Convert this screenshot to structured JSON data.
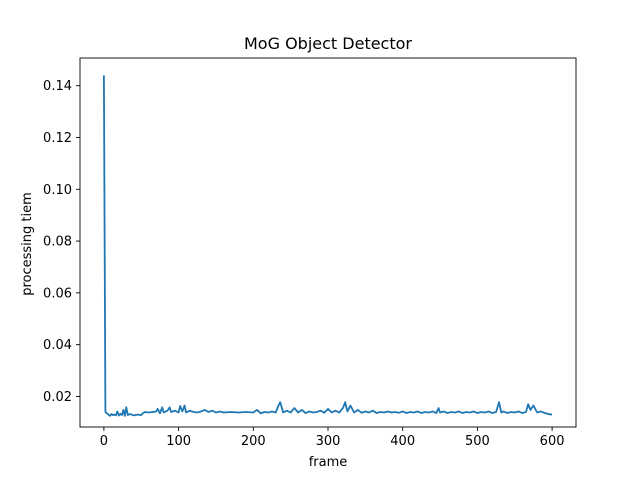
{
  "chart_data": {
    "type": "line",
    "title": "MoG Object Detector",
    "xlabel": "frame",
    "ylabel": "processing tiem",
    "xlim": [
      -32,
      632
    ],
    "ylim": [
      0.0082,
      0.1507
    ],
    "xticks": [
      0,
      100,
      200,
      300,
      400,
      500,
      600
    ],
    "yticks": [
      0.02,
      0.04,
      0.06,
      0.08,
      0.1,
      0.12,
      0.14
    ],
    "ytick_labels": [
      "0.02",
      "0.04",
      "0.06",
      "0.08",
      "0.10",
      "0.12",
      "0.14"
    ],
    "grid": false,
    "line_color": "#1f77b4",
    "series": [
      {
        "x": [
          0,
          2,
          4,
          6,
          8,
          10,
          12,
          14,
          16,
          18,
          20,
          22,
          24,
          26,
          28,
          30,
          32,
          35,
          40,
          45,
          50,
          52,
          55,
          60,
          65,
          70,
          72,
          75,
          78,
          80,
          85,
          88,
          90,
          95,
          100,
          102,
          105,
          108,
          110,
          115,
          120,
          125,
          130,
          135,
          140,
          145,
          150,
          155,
          160,
          170,
          180,
          190,
          200,
          205,
          210,
          215,
          220,
          225,
          230,
          233,
          236,
          240,
          245,
          250,
          255,
          260,
          265,
          270,
          275,
          280,
          285,
          290,
          295,
          300,
          305,
          310,
          315,
          320,
          323,
          326,
          330,
          335,
          340,
          345,
          350,
          355,
          360,
          365,
          370,
          375,
          380,
          385,
          390,
          395,
          400,
          405,
          410,
          415,
          420,
          425,
          430,
          435,
          440,
          445,
          448,
          450,
          455,
          460,
          465,
          470,
          475,
          480,
          485,
          490,
          495,
          500,
          505,
          510,
          515,
          520,
          525,
          529,
          532,
          535,
          540,
          545,
          550,
          555,
          560,
          565,
          568,
          571,
          575,
          580,
          585,
          590,
          595,
          600
        ],
        "y": [
          0.144,
          0.014,
          0.0135,
          0.013,
          0.0125,
          0.0132,
          0.0128,
          0.013,
          0.0127,
          0.0142,
          0.0126,
          0.0133,
          0.0128,
          0.0148,
          0.0125,
          0.0158,
          0.0128,
          0.0132,
          0.0127,
          0.013,
          0.0128,
          0.0135,
          0.014,
          0.0138,
          0.014,
          0.0142,
          0.0152,
          0.0135,
          0.0158,
          0.0138,
          0.0145,
          0.0158,
          0.014,
          0.0145,
          0.0138,
          0.0163,
          0.0142,
          0.0165,
          0.0138,
          0.0145,
          0.014,
          0.0138,
          0.0142,
          0.0148,
          0.014,
          0.0145,
          0.0138,
          0.0142,
          0.0138,
          0.014,
          0.0138,
          0.014,
          0.0138,
          0.0148,
          0.0135,
          0.014,
          0.0138,
          0.0142,
          0.0138,
          0.016,
          0.0178,
          0.0138,
          0.0145,
          0.0138,
          0.0155,
          0.0138,
          0.0148,
          0.0136,
          0.0142,
          0.0138,
          0.014,
          0.0145,
          0.0137,
          0.0152,
          0.0138,
          0.0145,
          0.0138,
          0.0155,
          0.0178,
          0.0142,
          0.0165,
          0.0138,
          0.0148,
          0.0137,
          0.0142,
          0.0138,
          0.0145,
          0.0136,
          0.014,
          0.0138,
          0.0142,
          0.0138,
          0.014,
          0.0137,
          0.0142,
          0.0136,
          0.014,
          0.0138,
          0.0142,
          0.0136,
          0.014,
          0.0138,
          0.0142,
          0.0136,
          0.0155,
          0.0138,
          0.0142,
          0.0136,
          0.014,
          0.0138,
          0.0142,
          0.0136,
          0.014,
          0.0138,
          0.0142,
          0.0136,
          0.014,
          0.0138,
          0.0142,
          0.0136,
          0.014,
          0.0178,
          0.0138,
          0.0142,
          0.0136,
          0.014,
          0.0138,
          0.0142,
          0.0136,
          0.014,
          0.017,
          0.0148,
          0.0165,
          0.0138,
          0.0142,
          0.0136,
          0.0132,
          0.013
        ]
      }
    ]
  }
}
